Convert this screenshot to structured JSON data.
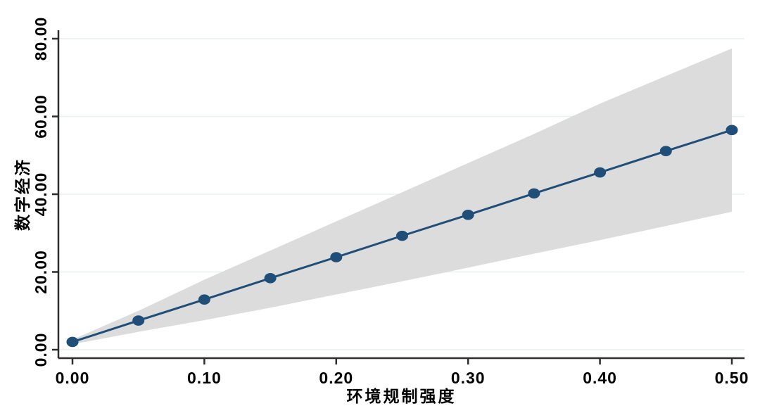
{
  "chart_data": {
    "type": "line",
    "title": "",
    "xlabel": "环境规制强度",
    "ylabel": "数字经济",
    "x": [
      0.0,
      0.05,
      0.1,
      0.15,
      0.2,
      0.25,
      0.3,
      0.35,
      0.4,
      0.45,
      0.5
    ],
    "series": [
      {
        "values": [
          2.0,
          7.5,
          12.9,
          18.4,
          23.8,
          29.3,
          34.7,
          40.2,
          45.6,
          51.1,
          56.5
        ],
        "marker": "circle"
      }
    ],
    "ci_band": {
      "upper": [
        2.6,
        10.0,
        18.0,
        25.5,
        33.0,
        40.5,
        48.0,
        55.5,
        63.3,
        70.4,
        77.5
      ],
      "lower": [
        1.4,
        4.6,
        7.6,
        10.8,
        14.2,
        17.6,
        21.1,
        24.7,
        28.2,
        31.8,
        35.5
      ]
    },
    "xlim": [
      0.0,
      0.5
    ],
    "ylim": [
      0,
      80
    ],
    "xticks": {
      "values": [
        0.0,
        0.1,
        0.2,
        0.3,
        0.4,
        0.5
      ],
      "labels": [
        "0.00",
        "0.10",
        "0.20",
        "0.30",
        "0.40",
        "0.50"
      ]
    },
    "yticks": {
      "values": [
        0,
        20,
        40,
        60,
        80
      ],
      "labels": [
        "0.00",
        "20.00",
        "40.00",
        "60.00",
        "80.00"
      ]
    },
    "grid": "horizontal",
    "legend": "none",
    "colors": {
      "line": "#1f4e79",
      "marker": "#1f4e79",
      "band": "#dcdcdc",
      "grid": "#e8f1f1",
      "axis": "#2d2d2d",
      "text": "#000000",
      "background": "#ffffff"
    }
  }
}
